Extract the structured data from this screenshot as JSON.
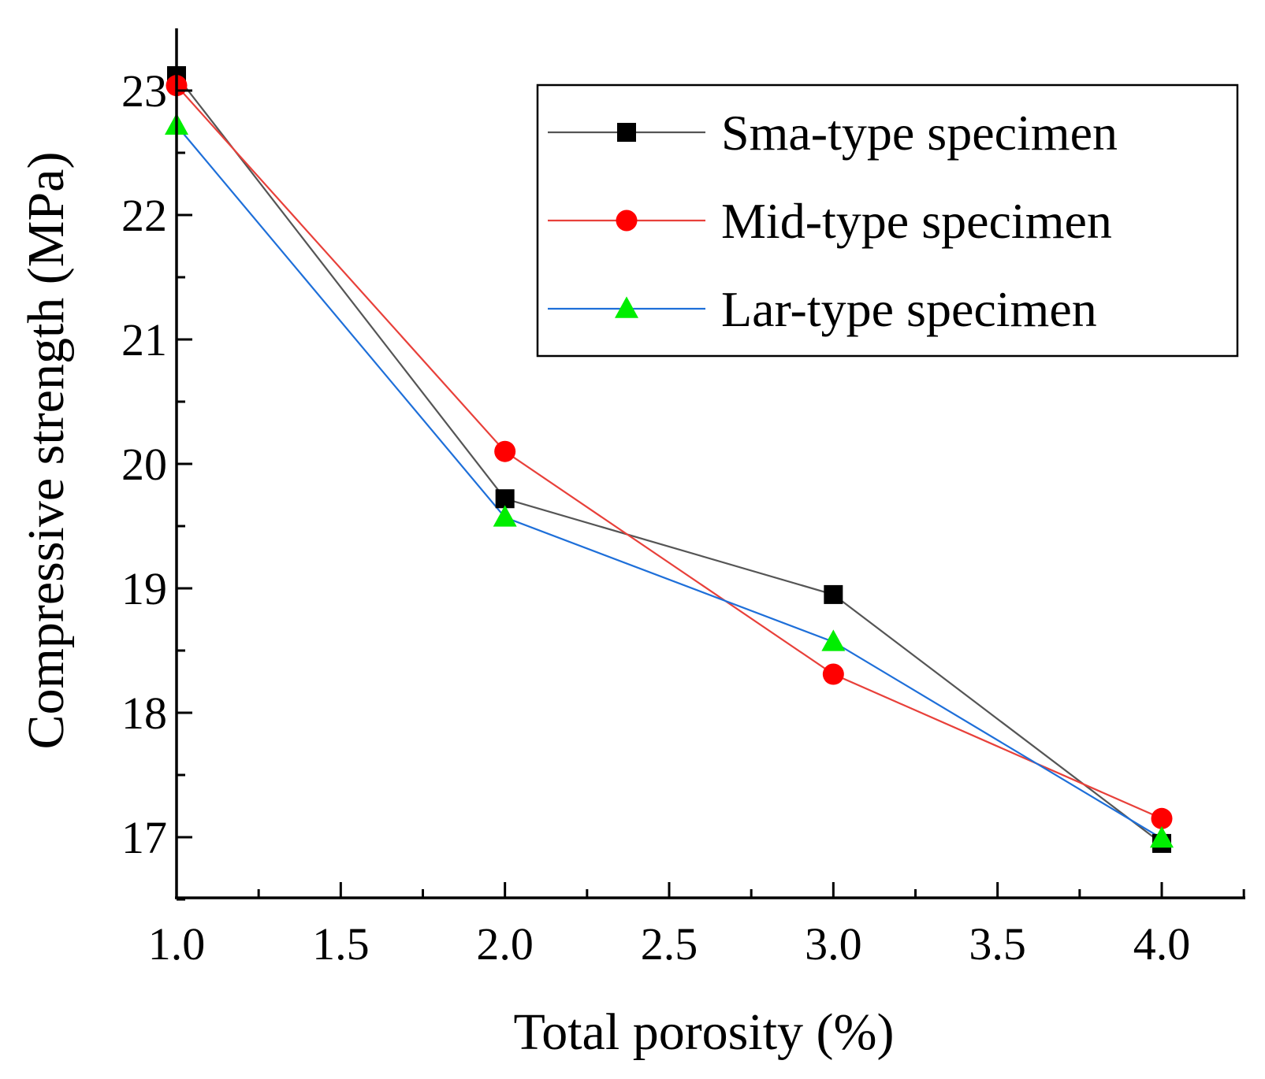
{
  "chart_data": {
    "type": "line",
    "title": "",
    "xlabel": "Total porosity (%)",
    "ylabel": "Compressive strength (MPa)",
    "xlim": [
      1.0,
      4.25
    ],
    "ylim": [
      16.5,
      23.45
    ],
    "x_ticks": [
      "1.0",
      "1.5",
      "2.0",
      "2.5",
      "3.0",
      "3.5",
      "4.0"
    ],
    "y_ticks": [
      "17",
      "18",
      "19",
      "20",
      "21",
      "22",
      "23"
    ],
    "legend_position": "top-right",
    "grid": false,
    "series": [
      {
        "name": "Sma-type specimen",
        "marker": "square",
        "marker_color": "#000000",
        "line_color": "#555555",
        "x": [
          1.0,
          2.0,
          3.0,
          4.0
        ],
        "y": [
          23.12,
          19.72,
          18.95,
          16.95
        ]
      },
      {
        "name": "Mid-type specimen",
        "marker": "circle",
        "marker_color": "#ff0000",
        "line_color": "#e8403a",
        "x": [
          1.0,
          2.0,
          3.0,
          4.0
        ],
        "y": [
          23.04,
          20.1,
          18.31,
          17.15
        ]
      },
      {
        "name": "Lar-type specimen",
        "marker": "triangle",
        "marker_color": "#00ee00",
        "line_color": "#1e6fd9",
        "x": [
          1.0,
          2.0,
          3.0,
          4.0
        ],
        "y": [
          22.72,
          19.57,
          18.57,
          16.99
        ]
      }
    ]
  }
}
